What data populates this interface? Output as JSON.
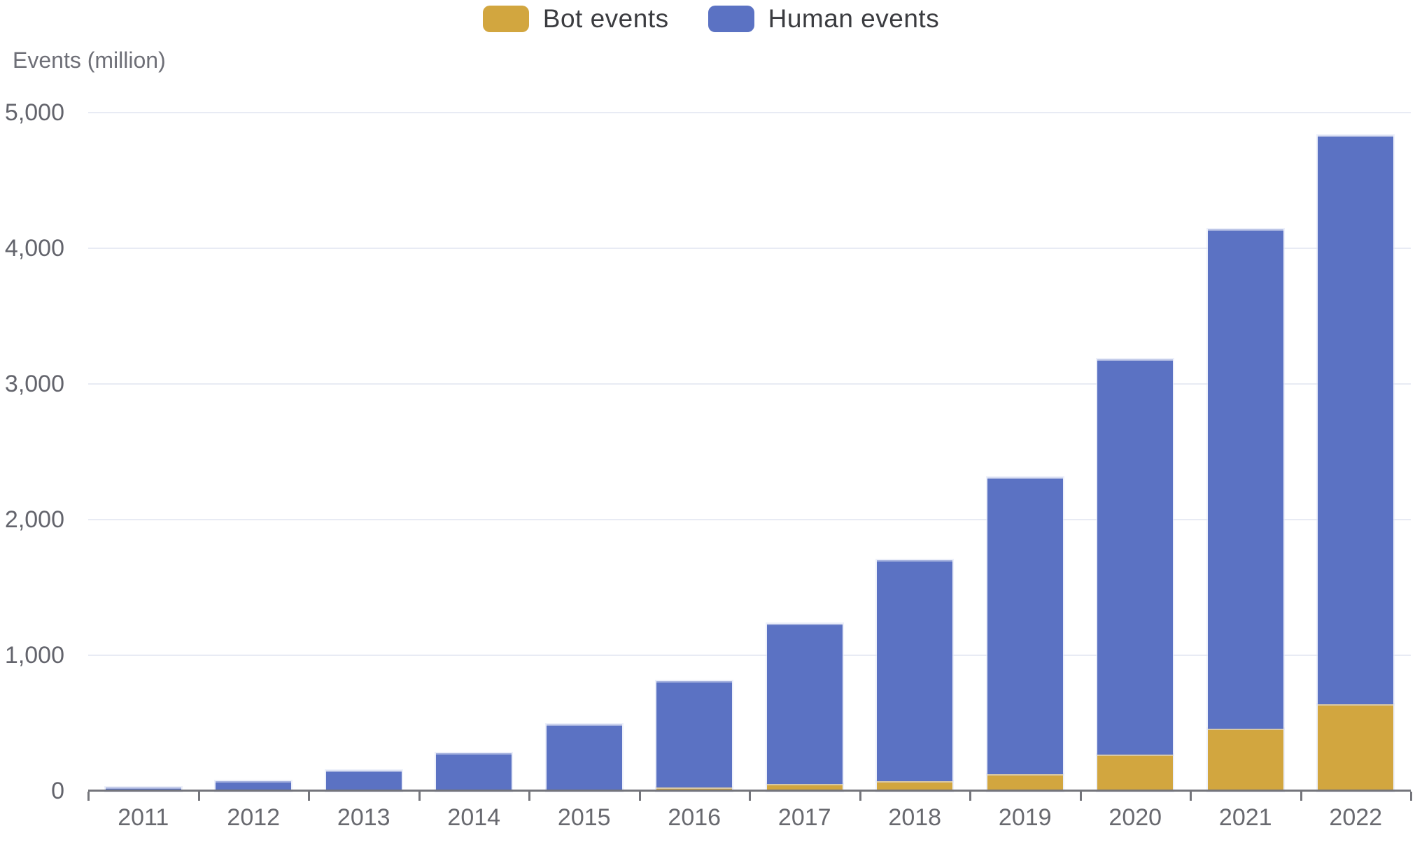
{
  "legend": {
    "items": [
      {
        "id": "bot",
        "label": "Bot events",
        "color": "#D2A63F"
      },
      {
        "id": "human",
        "label": "Human events",
        "color": "#5B72C3"
      }
    ]
  },
  "y_axis": {
    "title": "Events (million)",
    "tick_labels": [
      "0",
      "1,000",
      "2,000",
      "3,000",
      "4,000",
      "5,000"
    ],
    "tick_values": [
      0,
      1000,
      2000,
      3000,
      4000,
      5000
    ]
  },
  "chart_data": {
    "type": "bar",
    "stacked": true,
    "title": "",
    "xlabel": "",
    "ylabel": "Events (million)",
    "categories": [
      "2011",
      "2012",
      "2013",
      "2014",
      "2015",
      "2016",
      "2017",
      "2018",
      "2019",
      "2020",
      "2021",
      "2022"
    ],
    "series": [
      {
        "name": "Bot events",
        "color": "#D2A63F",
        "values": [
          0,
          0,
          0,
          5,
          10,
          25,
          50,
          70,
          125,
          270,
          460,
          640
        ]
      },
      {
        "name": "Human events",
        "color": "#5B72C3",
        "values": [
          25,
          70,
          150,
          275,
          480,
          785,
          1180,
          1630,
          2185,
          2910,
          3680,
          4190
        ]
      }
    ],
    "totals": [
      25,
      70,
      150,
      280,
      490,
      810,
      1230,
      1700,
      2310,
      3180,
      4140,
      4830
    ],
    "ylim": [
      0,
      5000
    ],
    "grid": true,
    "legend_position": "top-center"
  },
  "colors": {
    "bot": "#D2A63F",
    "human": "#5B72C3",
    "gridline": "#e8ebf4",
    "axis": "#74757b",
    "axis_label": "#63646c",
    "legend_text": "#3b3c40"
  }
}
